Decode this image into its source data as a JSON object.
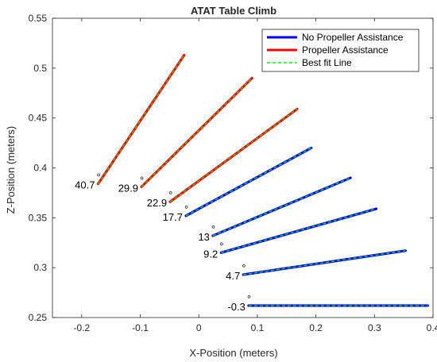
{
  "chart_data": {
    "type": "line",
    "title": "ATAT Table Climb",
    "xlabel": "X-Position (meters)",
    "ylabel": "Z-Position (meters)",
    "xlim": [
      -0.25,
      0.4
    ],
    "ylim": [
      0.25,
      0.55
    ],
    "xticks": [
      -0.2,
      -0.1,
      0,
      0.1,
      0.2,
      0.3,
      0.4
    ],
    "xtick_labels": [
      "-0.2",
      "-0.1",
      "0",
      "0.1",
      "0.2",
      "0.3",
      "0.4"
    ],
    "yticks": [
      0.25,
      0.3,
      0.35,
      0.4,
      0.45,
      0.5,
      0.55
    ],
    "ytick_labels": [
      "0.25",
      "0.3",
      "0.35",
      "0.4",
      "0.45",
      "0.5",
      "0.55"
    ],
    "grid": false,
    "legend_position": "top-right",
    "legend": [
      {
        "label": "No Propeller Assistance",
        "color": "#0000ff",
        "style": "solid"
      },
      {
        "label": "Propeller Assistance",
        "color": "#ff0000",
        "style": "solid"
      },
      {
        "label": "Best fit Line",
        "color": "#00ff00",
        "style": "dashed"
      }
    ],
    "series": [
      {
        "angle_label": "40.7",
        "group": "Propeller Assistance",
        "x": [
          -0.172,
          -0.025
        ],
        "y": [
          0.384,
          0.513
        ]
      },
      {
        "angle_label": "29.9",
        "group": "Propeller Assistance",
        "x": [
          -0.098,
          0.091
        ],
        "y": [
          0.381,
          0.49
        ]
      },
      {
        "angle_label": "22.9",
        "group": "Propeller Assistance",
        "x": [
          -0.049,
          0.168
        ],
        "y": [
          0.366,
          0.459
        ]
      },
      {
        "angle_label": "17.7",
        "group": "No Propeller Assistance",
        "x": [
          -0.022,
          0.192
        ],
        "y": [
          0.352,
          0.42
        ]
      },
      {
        "angle_label": "13",
        "group": "No Propeller Assistance",
        "x": [
          0.024,
          0.259
        ],
        "y": [
          0.332,
          0.39
        ]
      },
      {
        "angle_label": "9.2",
        "group": "No Propeller Assistance",
        "x": [
          0.038,
          0.303
        ],
        "y": [
          0.315,
          0.359
        ]
      },
      {
        "angle_label": "4.7",
        "group": "No Propeller Assistance",
        "x": [
          0.076,
          0.353
        ],
        "y": [
          0.293,
          0.317
        ]
      },
      {
        "angle_label": "-0.3",
        "group": "No Propeller Assistance",
        "x": [
          0.085,
          0.391
        ],
        "y": [
          0.262,
          0.262
        ]
      }
    ],
    "degree_symbol": "°"
  }
}
